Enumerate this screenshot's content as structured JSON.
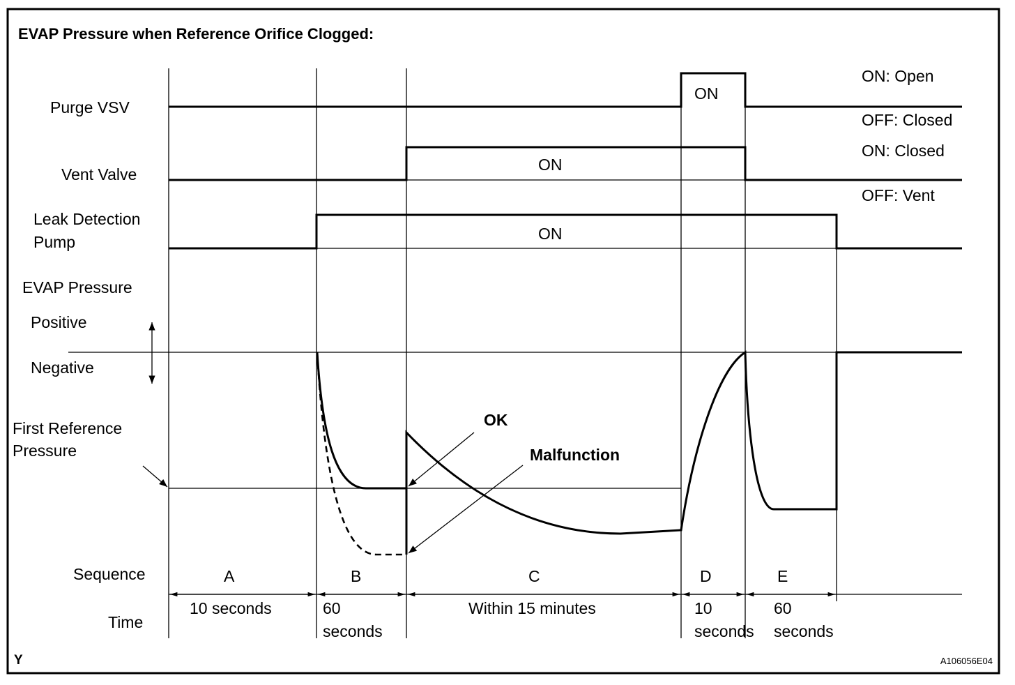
{
  "title": "EVAP Pressure when Reference Orifice Clogged:",
  "rows": {
    "purge_vsv": "Purge VSV",
    "vent_valve": "Vent Valve",
    "leak_pump_1": "Leak Detection",
    "leak_pump_2": "Pump",
    "evap_pressure": "EVAP Pressure",
    "positive": "Positive",
    "negative": "Negative",
    "first_ref_1": "First Reference",
    "first_ref_2": "Pressure",
    "sequence": "Sequence",
    "time": "Time"
  },
  "states": {
    "purge_on": "ON: Open",
    "purge_off": "OFF: Closed",
    "vent_on": "ON: Closed",
    "vent_off": "OFF: Vent",
    "on": "ON"
  },
  "annotations": {
    "ok": "OK",
    "malfunction": "Malfunction"
  },
  "sequence": [
    {
      "id": "A",
      "time": [
        "10 seconds"
      ]
    },
    {
      "id": "B",
      "time": [
        "60",
        "seconds"
      ]
    },
    {
      "id": "C",
      "time": [
        "Within 15 minutes"
      ]
    },
    {
      "id": "D",
      "time": [
        "10",
        "seconds"
      ]
    },
    {
      "id": "E",
      "time": [
        "60",
        "seconds"
      ]
    }
  ],
  "footer": {
    "left": "Y",
    "code": "A106056E04"
  }
}
